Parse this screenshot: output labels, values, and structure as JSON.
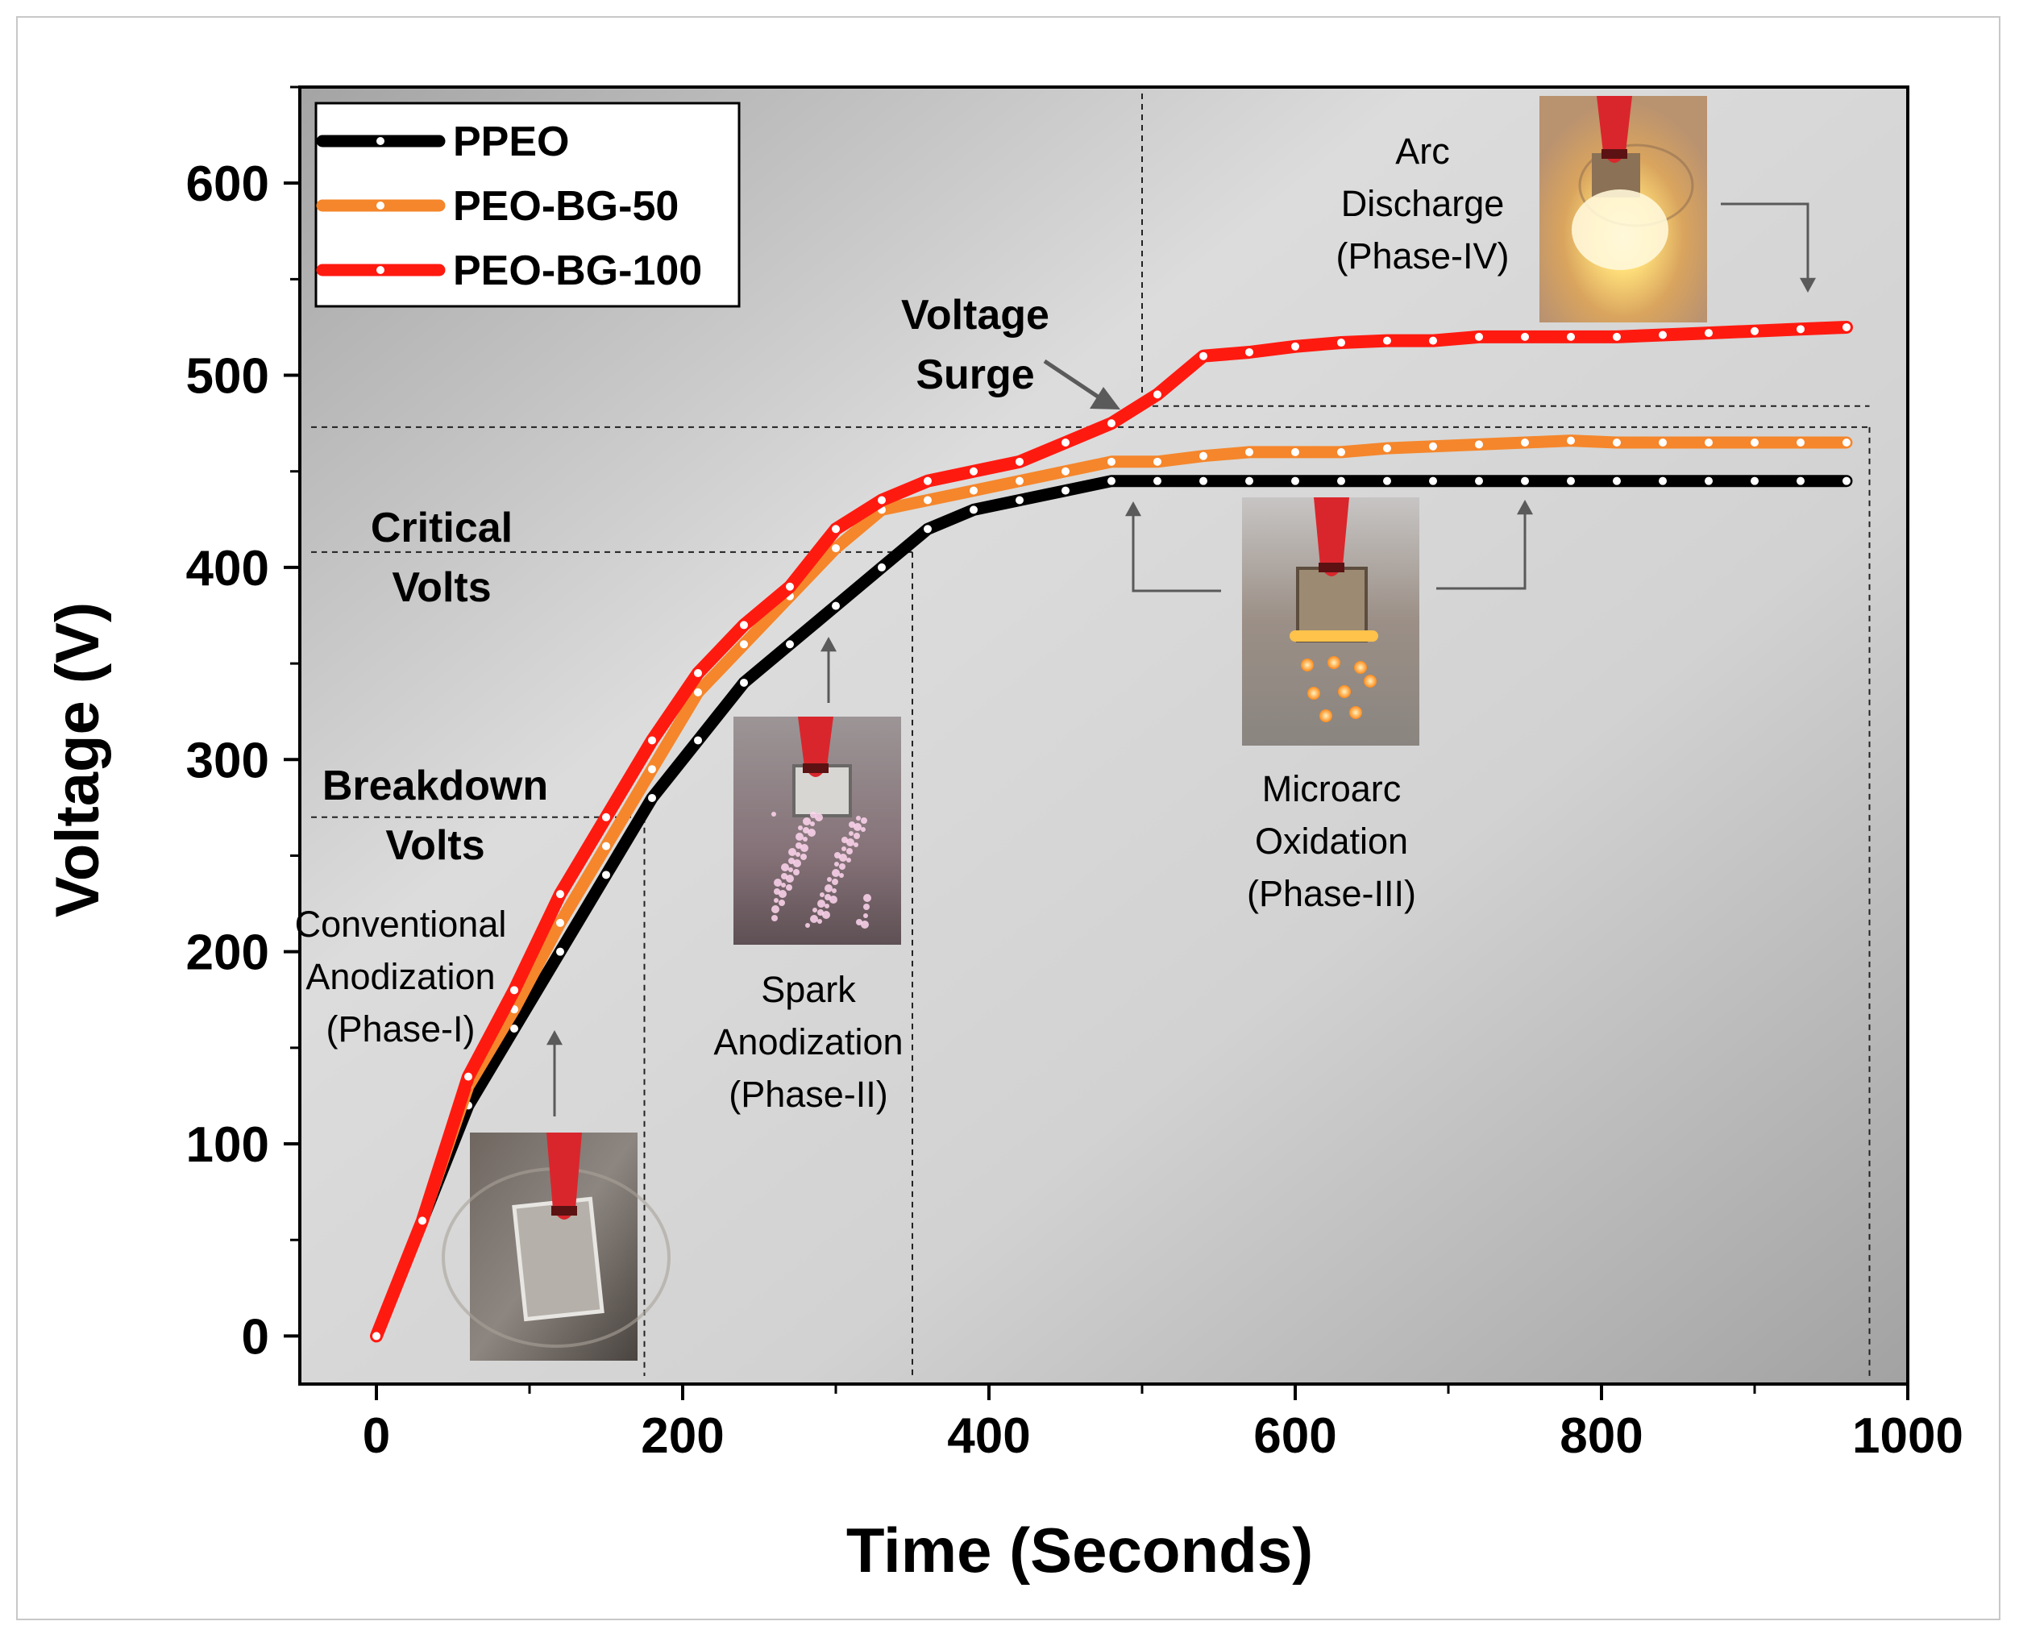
{
  "chart_data": {
    "type": "line",
    "xlabel": "Time (Seconds)",
    "ylabel": "Voltage (V)",
    "xlim": [
      -50,
      1000
    ],
    "ylim": [
      -25,
      650
    ],
    "x_ticks": [
      0,
      200,
      400,
      600,
      800,
      1000
    ],
    "y_ticks": [
      0,
      100,
      200,
      300,
      400,
      500,
      600
    ],
    "legend_position": "top-left",
    "x": [
      0,
      30,
      60,
      90,
      120,
      150,
      180,
      210,
      240,
      270,
      300,
      330,
      360,
      390,
      420,
      450,
      480,
      510,
      540,
      570,
      600,
      630,
      660,
      690,
      720,
      750,
      780,
      810,
      840,
      870,
      900,
      930,
      960
    ],
    "series": [
      {
        "name": "PPEO",
        "color": "#000000",
        "values": [
          0,
          60,
          120,
          160,
          200,
          240,
          280,
          310,
          340,
          360,
          380,
          400,
          420,
          430,
          435,
          440,
          445,
          445,
          445,
          445,
          445,
          445,
          445,
          445,
          445,
          445,
          445,
          445,
          445,
          445,
          445,
          445,
          445
        ]
      },
      {
        "name": "PEO-BG-50",
        "color": "#f5862b",
        "values": [
          0,
          60,
          130,
          170,
          215,
          255,
          295,
          335,
          360,
          385,
          410,
          430,
          435,
          440,
          445,
          450,
          455,
          455,
          458,
          460,
          460,
          460,
          462,
          463,
          464,
          465,
          466,
          465,
          465,
          465,
          465,
          465,
          465
        ]
      },
      {
        "name": "PEO-BG-100",
        "color": "#ff1a10",
        "values": [
          0,
          60,
          135,
          180,
          230,
          270,
          310,
          345,
          370,
          390,
          420,
          435,
          445,
          450,
          455,
          465,
          475,
          490,
          510,
          512,
          515,
          517,
          518,
          518,
          520,
          520,
          520,
          520,
          521,
          522,
          523,
          524,
          525
        ]
      }
    ],
    "reference_lines": {
      "breakdown_volts": 270,
      "critical_volts": 408,
      "upper_level_1": 473,
      "upper_level_2": 484,
      "phase_boundaries_time": [
        175,
        350,
        500,
        975
      ]
    },
    "annotations": {
      "breakdown_volts": [
        "Breakdown",
        "Volts"
      ],
      "critical_volts": [
        "Critical",
        "Volts"
      ],
      "voltage_surge": [
        "Voltage",
        "Surge"
      ],
      "phase_1": [
        "Conventional",
        "Anodization",
        "(Phase-I)"
      ],
      "phase_2": [
        "Spark",
        "Anodization",
        "(Phase-II)"
      ],
      "phase_3": [
        "Microarc",
        "Oxidation",
        "(Phase-III)"
      ],
      "phase_4": [
        "Arc",
        "Discharge",
        "(Phase-IV)"
      ]
    }
  }
}
